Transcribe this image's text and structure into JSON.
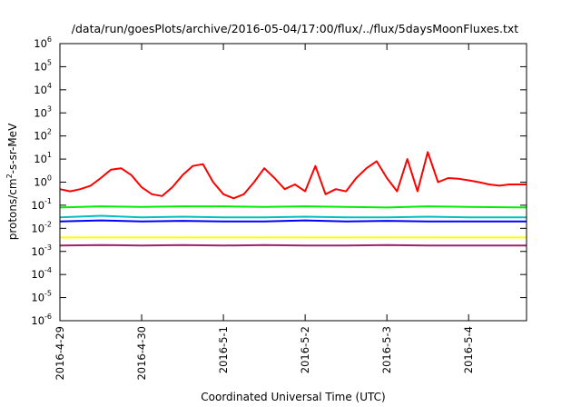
{
  "chart_data": {
    "type": "line",
    "title": "/data/run/goesPlots/archive/2016-05-04/17:00/flux/../flux/5daysMoonFluxes.txt",
    "xlabel": "Coordinated Universal Time (UTC)",
    "ylabel": "protons/cm²-s-sr-MeV",
    "ylabel_parts": {
      "pre": "protons/cm",
      "sup": "2",
      "post": "-s-sr-MeV"
    },
    "y_scale": "log",
    "ylim": [
      1e-06,
      1000000.0
    ],
    "y_ticks": [
      {
        "base": "10",
        "exp": "-6",
        "value": 1e-06
      },
      {
        "base": "10",
        "exp": "-5",
        "value": 1e-05
      },
      {
        "base": "10",
        "exp": "-4",
        "value": 0.0001
      },
      {
        "base": "10",
        "exp": "-3",
        "value": 0.001
      },
      {
        "base": "10",
        "exp": "-2",
        "value": 0.01
      },
      {
        "base": "10",
        "exp": "-1",
        "value": 0.1
      },
      {
        "base": "10",
        "exp": "0",
        "value": 1
      },
      {
        "base": "10",
        "exp": "1",
        "value": 10
      },
      {
        "base": "10",
        "exp": "2",
        "value": 100
      },
      {
        "base": "10",
        "exp": "3",
        "value": 1000
      },
      {
        "base": "10",
        "exp": "4",
        "value": 10000
      },
      {
        "base": "10",
        "exp": "5",
        "value": 100000
      },
      {
        "base": "10",
        "exp": "6",
        "value": 1000000
      }
    ],
    "xlim": [
      "2016-04-29T00:00",
      "2016-05-04T17:00"
    ],
    "x_ticks": [
      {
        "label": "2016-4-29",
        "value": "2016-04-29T00:00"
      },
      {
        "label": "2016-4-30",
        "value": "2016-04-30T00:00"
      },
      {
        "label": "2016-5-1",
        "value": "2016-05-01T00:00"
      },
      {
        "label": "2016-5-2",
        "value": "2016-05-02T00:00"
      },
      {
        "label": "2016-5-3",
        "value": "2016-05-03T00:00"
      },
      {
        "label": "2016-5-4",
        "value": "2016-05-04T00:00"
      }
    ],
    "grid": false,
    "legend": "none",
    "series": [
      {
        "color": "#ff0000",
        "x": [
          "2016-04-29T00:00",
          "2016-04-29T03:00",
          "2016-04-29T06:00",
          "2016-04-29T09:00",
          "2016-04-29T12:00",
          "2016-04-29T15:00",
          "2016-04-29T18:00",
          "2016-04-29T21:00",
          "2016-04-30T00:00",
          "2016-04-30T03:00",
          "2016-04-30T06:00",
          "2016-04-30T09:00",
          "2016-04-30T12:00",
          "2016-04-30T15:00",
          "2016-04-30T18:00",
          "2016-04-30T21:00",
          "2016-05-01T00:00",
          "2016-05-01T03:00",
          "2016-05-01T06:00",
          "2016-05-01T09:00",
          "2016-05-01T12:00",
          "2016-05-01T15:00",
          "2016-05-01T18:00",
          "2016-05-01T21:00",
          "2016-05-02T00:00",
          "2016-05-02T03:00",
          "2016-05-02T06:00",
          "2016-05-02T09:00",
          "2016-05-02T12:00",
          "2016-05-02T15:00",
          "2016-05-02T18:00",
          "2016-05-02T21:00",
          "2016-05-03T00:00",
          "2016-05-03T03:00",
          "2016-05-03T06:00",
          "2016-05-03T09:00",
          "2016-05-03T12:00",
          "2016-05-03T15:00",
          "2016-05-03T18:00",
          "2016-05-03T21:00",
          "2016-05-04T00:00",
          "2016-05-04T03:00",
          "2016-05-04T06:00",
          "2016-05-04T09:00",
          "2016-05-04T12:00",
          "2016-05-04T17:00"
        ],
        "values": [
          0.5,
          0.4,
          0.5,
          0.7,
          1.5,
          3.5,
          4.0,
          2.0,
          0.6,
          0.3,
          0.25,
          0.6,
          2.0,
          5.0,
          6.0,
          1.0,
          0.3,
          0.2,
          0.3,
          1.0,
          4.0,
          1.5,
          0.5,
          0.8,
          0.4,
          5.0,
          0.3,
          0.5,
          0.4,
          1.5,
          4.0,
          8.0,
          1.5,
          0.4,
          10.0,
          0.4,
          20.0,
          1.0,
          1.5,
          1.4,
          1.2,
          1.0,
          0.8,
          0.7,
          0.8,
          0.8
        ]
      },
      {
        "color": "#00ee00",
        "x": [
          "2016-04-29T00:00",
          "2016-04-29T12:00",
          "2016-04-30T00:00",
          "2016-04-30T12:00",
          "2016-05-01T00:00",
          "2016-05-01T12:00",
          "2016-05-02T00:00",
          "2016-05-02T12:00",
          "2016-05-03T00:00",
          "2016-05-03T12:00",
          "2016-05-04T00:00",
          "2016-05-04T17:00"
        ],
        "values": [
          0.08,
          0.09,
          0.085,
          0.09,
          0.09,
          0.085,
          0.09,
          0.085,
          0.08,
          0.09,
          0.085,
          0.08
        ]
      },
      {
        "color": "#00c0c0",
        "x": [
          "2016-04-29T00:00",
          "2016-04-29T12:00",
          "2016-04-30T00:00",
          "2016-04-30T12:00",
          "2016-05-01T00:00",
          "2016-05-01T12:00",
          "2016-05-02T00:00",
          "2016-05-02T12:00",
          "2016-05-03T00:00",
          "2016-05-03T12:00",
          "2016-05-04T00:00",
          "2016-05-04T17:00"
        ],
        "values": [
          0.03,
          0.035,
          0.03,
          0.032,
          0.03,
          0.03,
          0.032,
          0.03,
          0.03,
          0.032,
          0.03,
          0.03
        ]
      },
      {
        "color": "#0000ff",
        "x": [
          "2016-04-29T00:00",
          "2016-04-29T12:00",
          "2016-04-30T00:00",
          "2016-04-30T12:00",
          "2016-05-01T00:00",
          "2016-05-01T12:00",
          "2016-05-02T00:00",
          "2016-05-02T12:00",
          "2016-05-03T00:00",
          "2016-05-03T12:00",
          "2016-05-04T00:00",
          "2016-05-04T17:00"
        ],
        "values": [
          0.02,
          0.022,
          0.02,
          0.021,
          0.02,
          0.02,
          0.022,
          0.02,
          0.021,
          0.02,
          0.02,
          0.02
        ]
      },
      {
        "color": "#ffff00",
        "x": [
          "2016-04-29T00:00",
          "2016-04-30T00:00",
          "2016-05-01T00:00",
          "2016-05-02T00:00",
          "2016-05-03T00:00",
          "2016-05-04T00:00",
          "2016-05-04T17:00"
        ],
        "values": [
          0.004,
          0.004,
          0.004,
          0.004,
          0.004,
          0.004,
          0.004
        ]
      },
      {
        "color": "#a0206a",
        "x": [
          "2016-04-29T00:00",
          "2016-04-29T12:00",
          "2016-04-30T00:00",
          "2016-04-30T12:00",
          "2016-05-01T00:00",
          "2016-05-01T12:00",
          "2016-05-02T00:00",
          "2016-05-02T12:00",
          "2016-05-03T00:00",
          "2016-05-03T12:00",
          "2016-05-04T00:00",
          "2016-05-04T17:00"
        ],
        "values": [
          0.0018,
          0.0019,
          0.0018,
          0.0019,
          0.0018,
          0.0019,
          0.0018,
          0.0018,
          0.0019,
          0.0018,
          0.0018,
          0.0018
        ]
      }
    ]
  }
}
